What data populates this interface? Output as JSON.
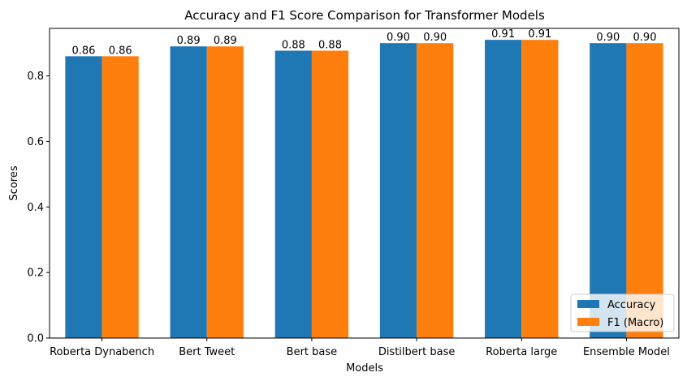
{
  "chart_data": {
    "type": "bar",
    "title": "Accuracy and F1 Score Comparison for Transformer Models",
    "xlabel": "Models",
    "ylabel": "Scores",
    "ylim": [
      0,
      0.945
    ],
    "yticks": [
      0.0,
      0.2,
      0.4,
      0.6,
      0.8
    ],
    "ytick_labels": [
      "0.0",
      "0.2",
      "0.4",
      "0.6",
      "0.8"
    ],
    "categories": [
      "Roberta Dynabench",
      "Bert Tweet",
      "Bert base",
      "Distilbert base",
      "Roberta large",
      "Ensemble Model"
    ],
    "series": [
      {
        "name": "Accuracy",
        "color": "#1f77b4",
        "values": [
          0.86,
          0.89,
          0.877,
          0.9,
          0.91,
          0.9
        ],
        "labels": [
          "0.86",
          "0.89",
          "0.88",
          "0.90",
          "0.91",
          "0.90"
        ]
      },
      {
        "name": "F1 (Macro)",
        "color": "#ff7f0e",
        "values": [
          0.86,
          0.89,
          0.877,
          0.9,
          0.91,
          0.9
        ],
        "labels": [
          "0.86",
          "0.89",
          "0.88",
          "0.90",
          "0.91",
          "0.90"
        ]
      }
    ],
    "legend_position": "bottom-right",
    "grid": false
  }
}
